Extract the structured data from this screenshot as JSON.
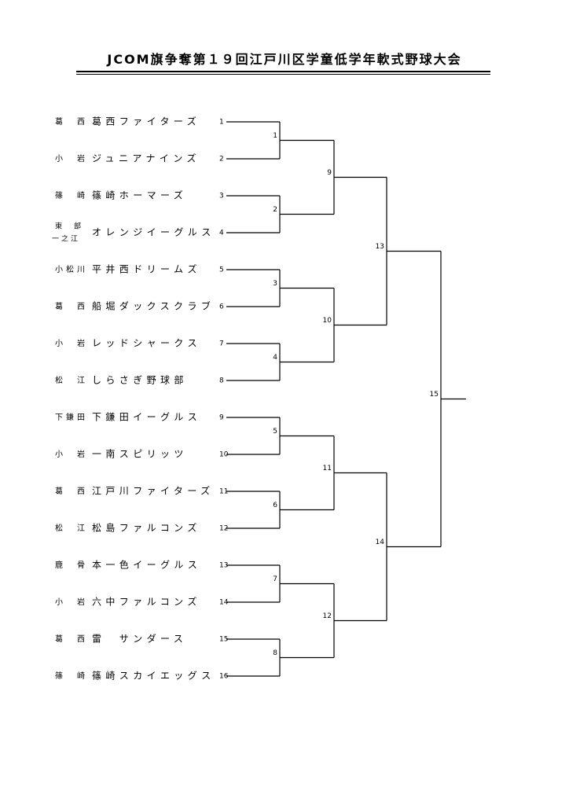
{
  "title": "JCOM旗争奪第１９回江戸川区学童低学年軟式野球大会",
  "teams": [
    {
      "seed": "1",
      "area": "葛　西",
      "name": "葛西ファイターズ"
    },
    {
      "seed": "2",
      "area": "小　岩",
      "name": "ジュニアナインズ"
    },
    {
      "seed": "3",
      "area": "篠　崎",
      "name": "篠崎ホーマーズ"
    },
    {
      "seed": "4",
      "area": "東　部",
      "area2": "一之江",
      "name": "オレンジイーグルス"
    },
    {
      "seed": "5",
      "area": "小松川",
      "name": "平井西ドリームズ"
    },
    {
      "seed": "6",
      "area": "葛　西",
      "name": "船堀ダックスクラブ"
    },
    {
      "seed": "7",
      "area": "小　岩",
      "name": "レッドシャークス"
    },
    {
      "seed": "8",
      "area": "松　江",
      "name": "しらさぎ野球部"
    },
    {
      "seed": "9",
      "area": "下鎌田",
      "name": "下鎌田イーグルス"
    },
    {
      "seed": "10",
      "area": "小　岩",
      "name": "一南スピリッツ"
    },
    {
      "seed": "11",
      "area": "葛　西",
      "name": "江戸川ファイターズ"
    },
    {
      "seed": "12",
      "area": "松　江",
      "name": "松島ファルコンズ"
    },
    {
      "seed": "13",
      "area": "鹿　骨",
      "name": "本一色イーグルス"
    },
    {
      "seed": "14",
      "area": "小　岩",
      "name": "六中ファルコンズ"
    },
    {
      "seed": "15",
      "area": "葛　西",
      "name": "雷　サンダース"
    },
    {
      "seed": "16",
      "area": "篠　崎",
      "name": "篠崎スカイエッグス"
    }
  ],
  "rounds": [
    {
      "matches": [
        "1",
        "2",
        "3",
        "4",
        "5",
        "6",
        "7",
        "8"
      ]
    },
    {
      "matches": [
        "9",
        "10",
        "11",
        "12"
      ]
    },
    {
      "matches": [
        "13",
        "14"
      ]
    },
    {
      "matches": [
        "15"
      ]
    }
  ]
}
